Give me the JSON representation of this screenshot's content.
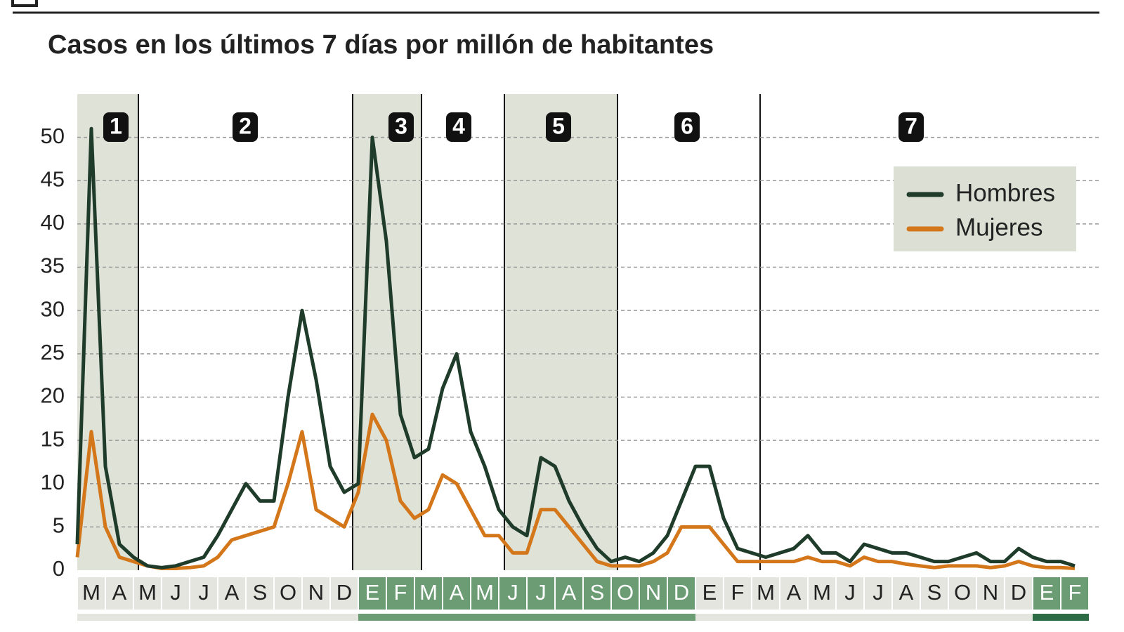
{
  "chart_data": {
    "type": "line",
    "subtitle": "Casos en los últimos 7 días por millón de habitantes",
    "periods": [
      "1",
      "2",
      "3",
      "4",
      "5",
      "6",
      "7"
    ],
    "categories": [
      null,
      "M",
      null,
      "A",
      null,
      "M",
      null,
      "J",
      null,
      "J",
      null,
      "A",
      null,
      "S",
      null,
      "O",
      null,
      "N",
      null,
      "D",
      null,
      "E",
      null,
      "F",
      null,
      "M",
      null,
      "A",
      null,
      "M",
      null,
      "J",
      null,
      "J",
      null,
      "A",
      null,
      "S",
      null,
      "O",
      null,
      "N",
      null,
      "D",
      null,
      "E",
      null,
      "F",
      null,
      "M",
      null,
      "A",
      null,
      "M",
      null,
      "J",
      null,
      "J",
      null,
      "A",
      null,
      "S",
      null,
      "O",
      null,
      "N",
      null,
      "D",
      null,
      "E",
      null,
      "F"
    ],
    "series": [
      {
        "name": "Hombres",
        "color": "#1f3b2a",
        "values": [
          3,
          51,
          12,
          3,
          1.5,
          0.5,
          0.3,
          0.5,
          1,
          1.5,
          4,
          7,
          10,
          8,
          8,
          20,
          30,
          22,
          12,
          9,
          10,
          50,
          38,
          18,
          13,
          14,
          21,
          25,
          16,
          12,
          7,
          5,
          4,
          13,
          12,
          8,
          5,
          2.5,
          1,
          1.5,
          1,
          2,
          4,
          8,
          12,
          12,
          6,
          2.5,
          2,
          1.5,
          2,
          2.5,
          4,
          2,
          2,
          1,
          3,
          2.5,
          2,
          2,
          1.5,
          1,
          1,
          1.5,
          2,
          1,
          1,
          2.5,
          1.5,
          1,
          1,
          0.5
        ]
      },
      {
        "name": "Mujeres",
        "color": "#d4761a",
        "values": [
          1.5,
          16,
          5,
          1.5,
          1,
          0.5,
          0.2,
          0.2,
          0.3,
          0.5,
          1.5,
          3.5,
          4,
          4.5,
          5,
          10,
          16,
          7,
          6,
          5,
          9,
          18,
          15,
          8,
          6,
          7,
          11,
          10,
          7,
          4,
          4,
          2,
          2,
          7,
          7,
          5,
          3,
          1,
          0.5,
          0.5,
          0.5,
          1,
          2,
          5,
          5,
          5,
          3,
          1,
          1,
          1,
          1,
          1,
          1.5,
          1,
          1,
          0.5,
          1.5,
          1,
          1,
          0.7,
          0.5,
          0.3,
          0.5,
          0.5,
          0.5,
          0.3,
          0.5,
          1,
          0.5,
          0.3,
          0.3,
          0.2
        ]
      }
    ],
    "ylim": [
      0,
      55
    ],
    "yticks": [
      0,
      5,
      10,
      15,
      20,
      25,
      30,
      35,
      40,
      45,
      50
    ],
    "grid": true,
    "legend": "upper-right"
  }
}
